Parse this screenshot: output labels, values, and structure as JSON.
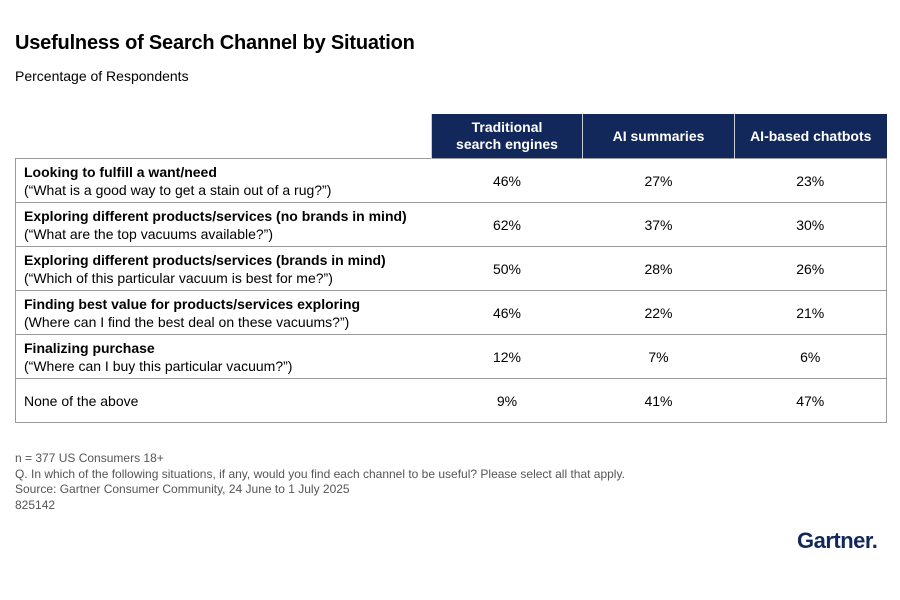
{
  "title": "Usefulness of Search Channel by Situation",
  "subtitle": "Percentage of Respondents",
  "chart_data": {
    "type": "table",
    "columns": [
      "Traditional search engines",
      "AI summaries",
      "AI-based chatbots"
    ],
    "rows": [
      {
        "label": "Looking to fulfill a want/need",
        "sublabel": "(“What is a good way to get a stain out of a rug?”)",
        "values": [
          "46%",
          "27%",
          "23%"
        ]
      },
      {
        "label": "Exploring different products/services (no brands in mind)",
        "sublabel": "(“What are the top vacuums available?”)",
        "values": [
          "62%",
          "37%",
          "30%"
        ]
      },
      {
        "label": "Exploring different products/services (brands in mind)",
        "sublabel": "(“Which of this particular vacuum is best for me?”)",
        "values": [
          "50%",
          "28%",
          "26%"
        ]
      },
      {
        "label": "Finding best value for products/services exploring",
        "sublabel": "(Where can I find the best deal on these vacuums?”)",
        "values": [
          "46%",
          "22%",
          "21%"
        ]
      },
      {
        "label": "Finalizing purchase",
        "sublabel": "(“Where can I buy this particular vacuum?”)",
        "values": [
          "12%",
          "7%",
          "6%"
        ]
      },
      {
        "label": "None of the above",
        "sublabel": "",
        "values": [
          "9%",
          "41%",
          "47%"
        ]
      }
    ]
  },
  "notes": {
    "sample": "n = 377 US Consumers 18+",
    "question": "Q. In which of the following situations, if any, would you find each channel to be useful? Please select all that apply.",
    "source": "Source: Gartner Consumer Community, 24 June to 1 July 2025",
    "id": "825142"
  },
  "logo": "Gartner.",
  "colors": {
    "header_bg": "#13285a",
    "header_text": "#ffffff",
    "logo": "#13285a"
  }
}
